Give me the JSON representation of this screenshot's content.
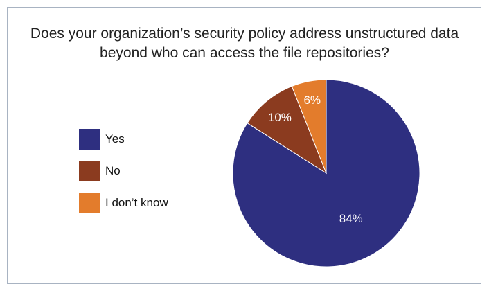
{
  "chart_data": {
    "type": "pie",
    "title": "Does your organization’s security policy address unstructured data beyond who can access the file repositories?",
    "categories": [
      "Yes",
      "No",
      "I don’t know"
    ],
    "values": [
      84,
      10,
      6
    ],
    "labels": [
      "84%",
      "10%",
      "6%"
    ],
    "colors": [
      "#2e2f80",
      "#8b3b1f",
      "#e37c2c"
    ],
    "legend_placement": "left"
  }
}
